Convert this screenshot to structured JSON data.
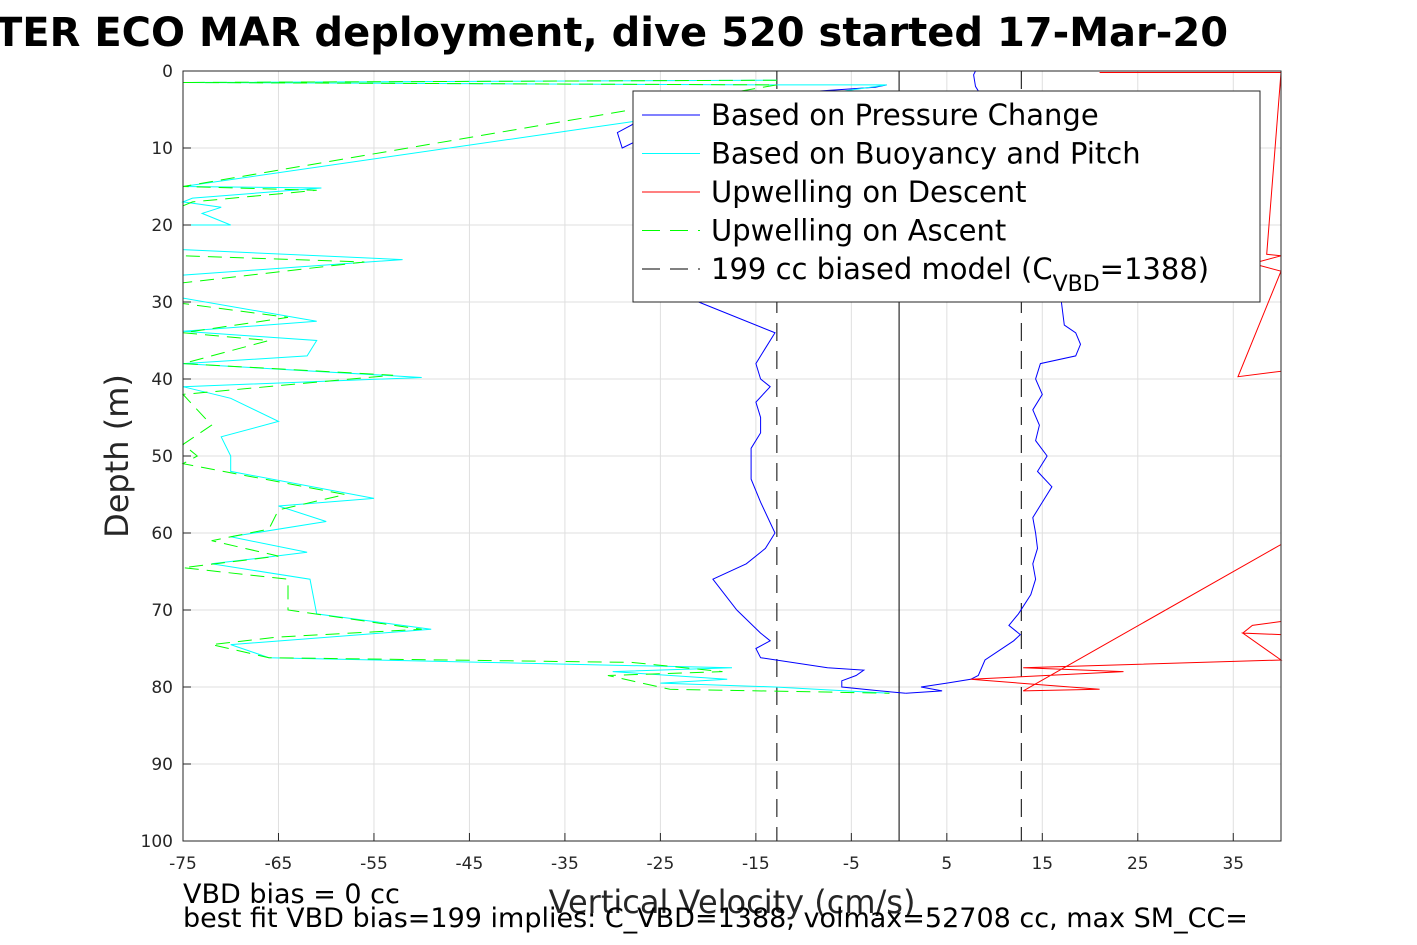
{
  "title": "TER ECO MAR deployment, dive 520 started 17-Mar-20",
  "footnote_1": "VBD bias = 0 cc",
  "footnote_2": "best fit VBD bias=199 implies: C_VBD=1388, volmax=52708 cc, max SM_CC=",
  "chart_data": {
    "type": "line",
    "xlabel": "Vertical Velocity (cm/s)",
    "ylabel": "Depth (m)",
    "xlim": [
      -75,
      40
    ],
    "ylim": [
      0,
      100
    ],
    "y_reversed": true,
    "grid": true,
    "xticks": [
      -75,
      -65,
      -55,
      -45,
      -35,
      -25,
      -15,
      -5,
      5,
      15,
      25,
      35
    ],
    "yticks": [
      0,
      10,
      20,
      30,
      40,
      50,
      60,
      70,
      80,
      90,
      100
    ],
    "legend": {
      "placement": "top-right",
      "entries": [
        {
          "label": "Based on Pressure Change",
          "color": "#0000ff",
          "dash": "solid"
        },
        {
          "label": "Based on Buoyancy and Pitch",
          "color": "#00ffff",
          "dash": "solid"
        },
        {
          "label": "Upwelling on Descent",
          "color": "#ff0000",
          "dash": "solid"
        },
        {
          "label": "Upwelling on Ascent",
          "color": "#00ff00",
          "dash": "dashed"
        },
        {
          "label": "199 cc biased model (C",
          "sub": "VBD",
          "suffix": "=1388)",
          "color": "#000000",
          "dash": "dashed"
        }
      ]
    },
    "reference_lines": [
      {
        "x": 0,
        "style": "solid",
        "color": "#000000"
      },
      {
        "x": -12.8,
        "style": "dashed",
        "color": "#000000"
      },
      {
        "x": 12.8,
        "style": "dashed",
        "color": "#000000"
      }
    ],
    "series": [
      {
        "name": "Based on Pressure Change",
        "color": "#0000ff",
        "dash": "solid",
        "points": [
          [
            -1.3,
            1.8
          ],
          [
            -2.5,
            2.1
          ],
          [
            -25,
            4
          ],
          [
            -28,
            7
          ],
          [
            -29.5,
            8
          ],
          [
            -29,
            10
          ],
          [
            -24,
            7
          ],
          [
            -20,
            11
          ],
          [
            -18,
            16
          ],
          [
            -19,
            22
          ],
          [
            -21,
            28
          ],
          [
            -21,
            30
          ],
          [
            -13,
            34
          ],
          [
            -14,
            36
          ],
          [
            -15,
            38
          ],
          [
            -14.5,
            40
          ],
          [
            -13.5,
            41
          ],
          [
            -15,
            43
          ],
          [
            -14.5,
            45
          ],
          [
            -14.5,
            47
          ],
          [
            -15.5,
            49
          ],
          [
            -15.5,
            53
          ],
          [
            -14.5,
            56
          ],
          [
            -13,
            60
          ],
          [
            -14,
            62
          ],
          [
            -16,
            64
          ],
          [
            -19.5,
            66
          ],
          [
            -17,
            70
          ],
          [
            -14.5,
            73
          ],
          [
            -13.5,
            74
          ],
          [
            -15,
            75
          ],
          [
            -14.5,
            76.2
          ],
          [
            -7.5,
            77.5
          ],
          [
            -3.7,
            77.8
          ],
          [
            -4.5,
            78.5
          ],
          [
            -6,
            79.2
          ],
          [
            -6,
            80
          ],
          [
            -2,
            80.5
          ],
          [
            0.7,
            80.8
          ]
        ]
      },
      {
        "name": "Based on Pressure Change (ascent)",
        "color": "#0000ff",
        "dash": "solid",
        "points": [
          [
            0.7,
            80.8
          ],
          [
            4.5,
            80.5
          ],
          [
            2.3,
            80
          ],
          [
            5,
            79.5
          ],
          [
            7.5,
            79
          ],
          [
            8.3,
            78.5
          ],
          [
            9,
            76.5
          ],
          [
            12,
            74
          ],
          [
            12.7,
            73.2
          ],
          [
            11.5,
            72
          ],
          [
            12.5,
            70.5
          ],
          [
            13.8,
            68
          ],
          [
            14.3,
            66
          ],
          [
            14,
            64
          ],
          [
            14.5,
            62
          ],
          [
            14.3,
            60
          ],
          [
            14,
            58
          ],
          [
            15,
            56
          ],
          [
            16,
            54
          ],
          [
            14.5,
            52
          ],
          [
            15.5,
            50
          ],
          [
            14.3,
            48
          ],
          [
            14.7,
            46
          ],
          [
            14,
            44
          ],
          [
            15,
            42
          ],
          [
            14.3,
            40
          ],
          [
            14.8,
            38
          ],
          [
            18.5,
            37
          ],
          [
            19,
            35.5
          ],
          [
            18.5,
            34
          ],
          [
            17.3,
            33
          ],
          [
            17,
            30
          ],
          [
            17.5,
            26
          ],
          [
            17,
            22
          ],
          [
            16.5,
            18
          ],
          [
            15.5,
            14
          ],
          [
            14,
            10
          ],
          [
            12,
            7
          ],
          [
            9,
            4
          ],
          [
            8,
            2
          ],
          [
            7.8,
            0.5
          ],
          [
            8,
            0
          ]
        ]
      },
      {
        "name": "Based on Buoyancy and Pitch",
        "color": "#00ffff",
        "dash": "solid",
        "points": [
          [
            -12.8,
            1.2
          ],
          [
            -75,
            1.5
          ],
          [
            -12.8,
            1.8
          ],
          [
            -1.3,
            1.8
          ],
          [
            -75,
            15
          ],
          [
            -60.5,
            15.2
          ],
          [
            -74,
            16.5
          ],
          [
            -75,
            17
          ],
          [
            -71,
            17.7
          ],
          [
            -73,
            18.5
          ],
          [
            -70,
            20
          ],
          [
            -75,
            20
          ],
          [
            -75,
            23.2
          ],
          [
            -52,
            24.5
          ],
          [
            -75,
            26.5
          ],
          [
            -75,
            28
          ],
          [
            -75,
            29.5
          ],
          [
            -61,
            32.5
          ],
          [
            -75,
            33.8
          ],
          [
            -61,
            35
          ],
          [
            -62,
            37
          ],
          [
            -75,
            38
          ],
          [
            -50,
            39.8
          ],
          [
            -75,
            41
          ],
          [
            -70,
            42.5
          ],
          [
            -65,
            45.5
          ],
          [
            -71,
            47.5
          ],
          [
            -70,
            50
          ],
          [
            -70,
            52
          ],
          [
            -55,
            55.5
          ],
          [
            -65,
            56.5
          ],
          [
            -60,
            58.5
          ],
          [
            -70,
            60.5
          ],
          [
            -62,
            62.5
          ],
          [
            -72,
            64
          ],
          [
            -61.7,
            66
          ],
          [
            -61,
            70.5
          ],
          [
            -49,
            72.5
          ],
          [
            -70,
            74.5
          ],
          [
            -66,
            76.2
          ],
          [
            -17.5,
            77.5
          ],
          [
            -30,
            78
          ],
          [
            -18,
            79
          ],
          [
            -25,
            79.5
          ],
          [
            -13,
            80
          ],
          [
            -1,
            80.8
          ]
        ]
      },
      {
        "name": "Upwelling on Ascent",
        "color": "#00ff00",
        "dash": "dashed",
        "points": [
          [
            -12.8,
            1.2
          ],
          [
            -75,
            1.5
          ],
          [
            -12.8,
            1.8
          ],
          [
            -75,
            15
          ],
          [
            -61,
            15.5
          ],
          [
            -74,
            17
          ],
          [
            -75,
            17.5
          ],
          [
            -75,
            24
          ],
          [
            -56,
            24.8
          ],
          [
            -75,
            27.5
          ],
          [
            -75,
            30.2
          ],
          [
            -64,
            32
          ],
          [
            -75,
            34
          ],
          [
            -66,
            35
          ],
          [
            -75,
            38
          ],
          [
            -53,
            39.5
          ],
          [
            -75,
            42
          ],
          [
            -72,
            46
          ],
          [
            -75,
            48.5
          ],
          [
            -73.5,
            50
          ],
          [
            -75,
            51
          ],
          [
            -58,
            55
          ],
          [
            -65,
            57
          ],
          [
            -66,
            59.5
          ],
          [
            -72,
            61
          ],
          [
            -65,
            63
          ],
          [
            -75,
            64.5
          ],
          [
            -64,
            66
          ],
          [
            -64,
            70
          ],
          [
            -50,
            72.5
          ],
          [
            -65,
            73.5
          ],
          [
            -72,
            74.5
          ],
          [
            -66,
            76.2
          ],
          [
            -28,
            76.8
          ],
          [
            -18.5,
            78
          ],
          [
            -30.5,
            78.5
          ],
          [
            -24,
            80.3
          ],
          [
            -1,
            80.8
          ]
        ]
      },
      {
        "name": "Upwelling on Descent",
        "color": "#ff0000",
        "dash": "solid",
        "points": [
          [
            21,
            0.2
          ],
          [
            40,
            0.2
          ],
          [
            38.5,
            23.8
          ],
          [
            40,
            24
          ],
          [
            37,
            25
          ],
          [
            40,
            26
          ],
          [
            35.5,
            39.7
          ],
          [
            40,
            39
          ],
          [
            40,
            40.5
          ],
          [
            40,
            61.5
          ],
          [
            13,
            80.5
          ],
          [
            21,
            80.3
          ],
          [
            7.5,
            79
          ],
          [
            23.5,
            78
          ],
          [
            13,
            77.5
          ],
          [
            40,
            76.5
          ],
          [
            36,
            73
          ],
          [
            40,
            73.2
          ],
          [
            36,
            73
          ],
          [
            37,
            72
          ],
          [
            40,
            71.5
          ]
        ]
      }
    ]
  }
}
